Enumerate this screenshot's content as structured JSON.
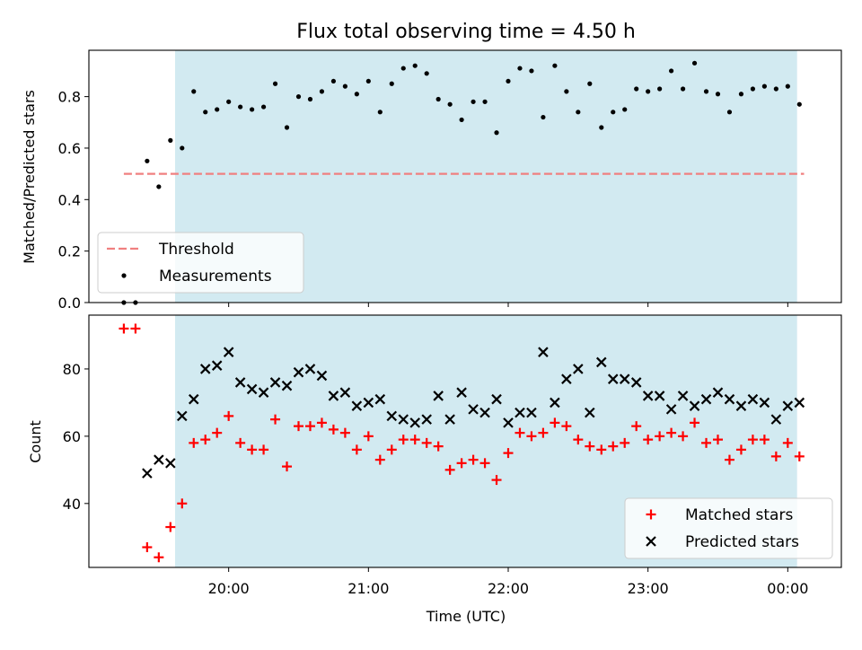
{
  "chart_data": {
    "title": "Flux total observing time = 4.50 h",
    "xlabel": "Time (UTC)",
    "x_tick_labels": [
      "20:00",
      "21:00",
      "22:00",
      "23:00",
      "00:00"
    ],
    "x_tick_minutes": [
      1200,
      1260,
      1320,
      1380,
      1440
    ],
    "xlim": [
      1140,
      1463
    ],
    "shaded_span": [
      1177,
      1444
    ],
    "shade_color": "#add8e6",
    "panels": [
      {
        "type": "scatter",
        "ylabel": "Matched/Predicted stars",
        "ylim": [
          0,
          0.98
        ],
        "y_ticks": [
          "0.0",
          "0.2",
          "0.4",
          "0.6",
          "0.8"
        ],
        "y_tick_values": [
          0,
          0.2,
          0.4,
          0.6,
          0.8
        ],
        "legend_position": "lower-left",
        "threshold": {
          "name": "Threshold",
          "value": 0.5,
          "x_range": [
            1155,
            1447
          ],
          "color": "#f08080"
        },
        "series": [
          {
            "name": "Measurements",
            "color": "#000000",
            "marker": "dot",
            "x": [
              1155,
              1160,
              1165,
              1170,
              1175,
              1180,
              1185,
              1190,
              1195,
              1200,
              1205,
              1210,
              1215,
              1220,
              1225,
              1230,
              1235,
              1240,
              1245,
              1250,
              1255,
              1260,
              1265,
              1270,
              1275,
              1280,
              1285,
              1290,
              1295,
              1300,
              1305,
              1310,
              1315,
              1320,
              1325,
              1330,
              1335,
              1340,
              1345,
              1350,
              1355,
              1360,
              1365,
              1370,
              1375,
              1380,
              1385,
              1390,
              1395,
              1400,
              1405,
              1410,
              1415,
              1420,
              1425,
              1430,
              1435,
              1440,
              1445
            ],
            "y": [
              0.0,
              0.0,
              0.55,
              0.45,
              0.63,
              0.6,
              0.82,
              0.74,
              0.75,
              0.78,
              0.76,
              0.75,
              0.76,
              0.85,
              0.68,
              0.8,
              0.79,
              0.82,
              0.86,
              0.84,
              0.81,
              0.86,
              0.74,
              0.85,
              0.91,
              0.92,
              0.89,
              0.79,
              0.77,
              0.71,
              0.78,
              0.78,
              0.66,
              0.86,
              0.91,
              0.9,
              0.72,
              0.92,
              0.82,
              0.74,
              0.85,
              0.68,
              0.74,
              0.75,
              0.83,
              0.82,
              0.83,
              0.9,
              0.83,
              0.93,
              0.82,
              0.81,
              0.74,
              0.81,
              0.83,
              0.84,
              0.83,
              0.84,
              0.77
            ]
          }
        ]
      },
      {
        "type": "scatter",
        "ylabel": "Count",
        "ylim": [
          21,
          96
        ],
        "y_ticks": [
          "40",
          "60",
          "80"
        ],
        "y_tick_values": [
          40,
          60,
          80
        ],
        "legend_position": "lower-right",
        "series": [
          {
            "name": "Matched stars",
            "color": "#ff0000",
            "marker": "plus",
            "x": [
              1155,
              1160,
              1165,
              1170,
              1175,
              1180,
              1185,
              1190,
              1195,
              1200,
              1205,
              1210,
              1215,
              1220,
              1225,
              1230,
              1235,
              1240,
              1245,
              1250,
              1255,
              1260,
              1265,
              1270,
              1275,
              1280,
              1285,
              1290,
              1295,
              1300,
              1305,
              1310,
              1315,
              1320,
              1325,
              1330,
              1335,
              1340,
              1345,
              1350,
              1355,
              1360,
              1365,
              1370,
              1375,
              1380,
              1385,
              1390,
              1395,
              1400,
              1405,
              1410,
              1415,
              1420,
              1425,
              1430,
              1435,
              1440,
              1445
            ],
            "y": [
              92,
              92,
              27,
              24,
              33,
              40,
              58,
              59,
              61,
              66,
              58,
              56,
              56,
              65,
              51,
              63,
              63,
              64,
              62,
              61,
              56,
              60,
              53,
              56,
              59,
              59,
              58,
              57,
              50,
              52,
              53,
              52,
              47,
              55,
              61,
              60,
              61,
              64,
              63,
              59,
              57,
              56,
              57,
              58,
              63,
              59,
              60,
              61,
              60,
              64,
              58,
              59,
              53,
              56,
              59,
              59,
              54,
              58,
              54
            ]
          },
          {
            "name": "Predicted stars",
            "color": "#000000",
            "marker": "cross",
            "x": [
              1165,
              1170,
              1175,
              1180,
              1185,
              1190,
              1195,
              1200,
              1205,
              1210,
              1215,
              1220,
              1225,
              1230,
              1235,
              1240,
              1245,
              1250,
              1255,
              1260,
              1265,
              1270,
              1275,
              1280,
              1285,
              1290,
              1295,
              1300,
              1305,
              1310,
              1315,
              1320,
              1325,
              1330,
              1335,
              1340,
              1345,
              1350,
              1355,
              1360,
              1365,
              1370,
              1375,
              1380,
              1385,
              1390,
              1395,
              1400,
              1405,
              1410,
              1415,
              1420,
              1425,
              1430,
              1435,
              1440,
              1445
            ],
            "y": [
              49,
              53,
              52,
              66,
              71,
              80,
              81,
              85,
              76,
              74,
              73,
              76,
              75,
              79,
              80,
              78,
              72,
              73,
              69,
              70,
              71,
              66,
              65,
              64,
              65,
              72,
              65,
              73,
              68,
              67,
              71,
              64,
              67,
              67,
              85,
              70,
              77,
              80,
              67,
              82,
              77,
              77,
              76,
              72,
              72,
              68,
              72,
              69,
              71,
              73,
              71,
              69,
              71,
              70,
              65,
              69,
              70
            ]
          }
        ]
      }
    ]
  }
}
